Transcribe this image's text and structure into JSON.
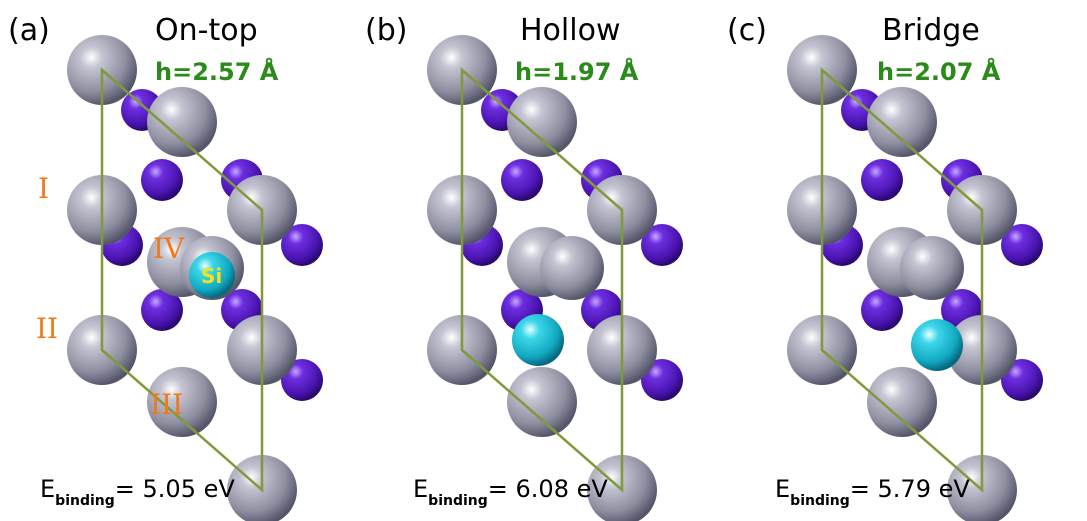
{
  "colors": {
    "large_atom": "#9a9aaa",
    "small_atom": "#5a1fc8",
    "adatom": "#1fc6dc",
    "cell_line": "#7f9a3a",
    "height_text": "#2a8a1a",
    "site_label": "#f07a1a",
    "si_text": "#f2e21a"
  },
  "panels": [
    {
      "letter": "(a)",
      "title": "On-top",
      "height": "h=2.57 Å",
      "energy_symbol": "E",
      "energy_subscript": "binding",
      "energy_value": "= 5.05 eV",
      "adatom_label": "Si",
      "site_labels": [
        "I",
        "II",
        "III",
        "IV"
      ]
    },
    {
      "letter": "(b)",
      "title": "Hollow",
      "height": "h=1.97 Å",
      "energy_symbol": "E",
      "energy_subscript": "binding",
      "energy_value": "= 6.08 eV"
    },
    {
      "letter": "(c)",
      "title": "Bridge",
      "height": "h=2.07 Å",
      "energy_symbol": "E",
      "energy_subscript": "binding",
      "energy_value": "= 5.79 eV"
    }
  ]
}
